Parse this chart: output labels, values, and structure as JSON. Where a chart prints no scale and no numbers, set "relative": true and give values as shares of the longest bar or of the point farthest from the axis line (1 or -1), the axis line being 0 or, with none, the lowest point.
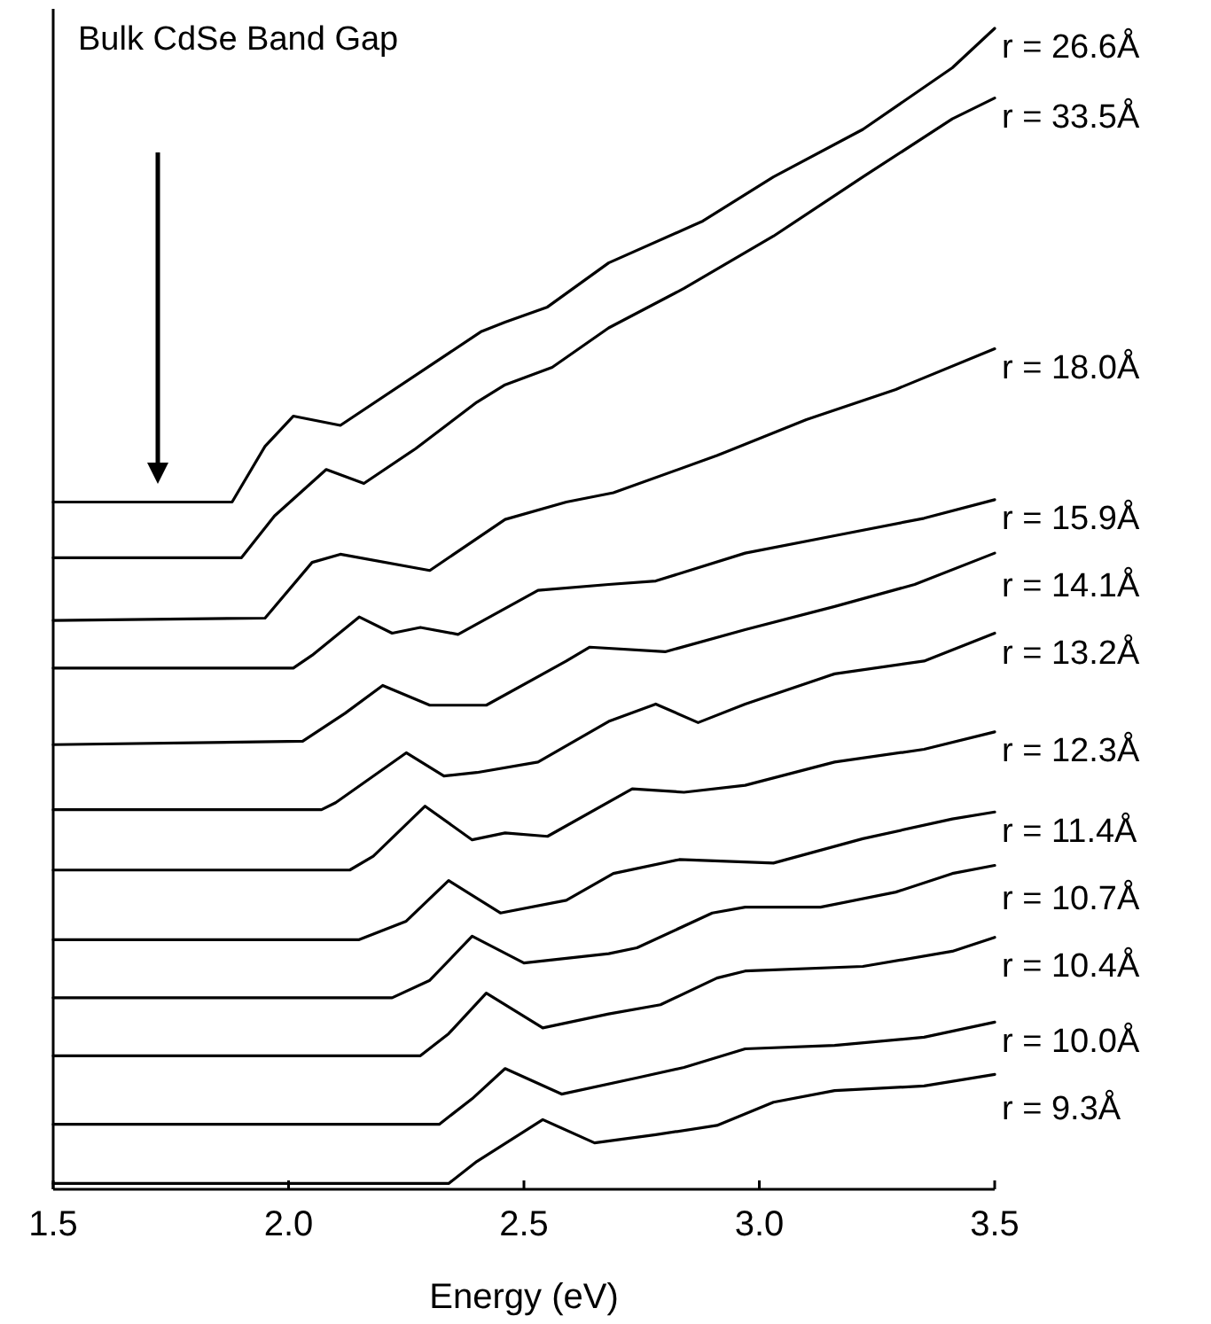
{
  "chart_data": {
    "type": "line",
    "xlabel": "Energy (eV)",
    "relative": true,
    "marker": "none",
    "line_style": "solid",
    "grid": false,
    "xlim": [
      1.5,
      3.5
    ],
    "xticks": [
      1.5,
      {
        "value": 2,
        "label": "2.0"
      },
      2.5,
      {
        "value": 3,
        "label": "3.0"
      },
      3.5
    ],
    "annotations": [
      "Bulk CdSe Band Gap"
    ],
    "series": [
      {
        "name": "r = 26.6Å",
        "color": "#000000",
        "x": [
          1.5,
          1.88,
          1.95,
          2.01,
          2.11,
          2.41,
          2.46,
          2.55,
          2.68,
          2.88,
          3.03,
          3.22,
          3.41,
          3.5
        ],
        "values": [
          0.592,
          0.592,
          0.64,
          0.666,
          0.658,
          0.739,
          0.747,
          0.76,
          0.798,
          0.834,
          0.872,
          0.913,
          0.966,
          1.0
        ]
      },
      {
        "name": "r = 33.5Å",
        "color": "#000000",
        "x": [
          1.5,
          1.9,
          1.97,
          2.08,
          2.16,
          2.27,
          2.4,
          2.46,
          2.56,
          2.68,
          2.84,
          3.03,
          3.22,
          3.41,
          3.5
        ],
        "values": [
          0.544,
          0.544,
          0.58,
          0.62,
          0.608,
          0.638,
          0.678,
          0.693,
          0.708,
          0.742,
          0.776,
          0.821,
          0.872,
          0.922,
          0.94
        ]
      },
      {
        "name": "r = 18.0Å",
        "color": "#000000",
        "x": [
          1.5,
          1.95,
          2.05,
          2.11,
          2.3,
          2.46,
          2.59,
          2.69,
          2.91,
          3.1,
          3.29,
          3.5
        ],
        "values": [
          0.49,
          0.492,
          0.54,
          0.547,
          0.533,
          0.577,
          0.592,
          0.6,
          0.632,
          0.663,
          0.689,
          0.724
        ]
      },
      {
        "name": "r = 15.9Å",
        "color": "#000000",
        "x": [
          1.5,
          2.01,
          2.05,
          2.15,
          2.22,
          2.28,
          2.36,
          2.53,
          2.68,
          2.78,
          2.97,
          3.16,
          3.35,
          3.5
        ],
        "values": [
          0.449,
          0.449,
          0.46,
          0.493,
          0.479,
          0.484,
          0.478,
          0.516,
          0.521,
          0.524,
          0.548,
          0.563,
          0.578,
          0.594
        ]
      },
      {
        "name": "r = 14.1Å",
        "color": "#000000",
        "x": [
          1.5,
          2.03,
          2.12,
          2.2,
          2.3,
          2.42,
          2.59,
          2.64,
          2.8,
          2.97,
          3.16,
          3.33,
          3.5
        ],
        "values": [
          0.383,
          0.386,
          0.41,
          0.434,
          0.417,
          0.417,
          0.455,
          0.467,
          0.463,
          0.482,
          0.502,
          0.521,
          0.548
        ]
      },
      {
        "name": "r = 13.2Å",
        "color": "#000000",
        "x": [
          1.5,
          2.07,
          2.1,
          2.25,
          2.33,
          2.4,
          2.53,
          2.68,
          2.78,
          2.87,
          2.97,
          3.16,
          3.35,
          3.5
        ],
        "values": [
          0.327,
          0.327,
          0.333,
          0.376,
          0.356,
          0.359,
          0.368,
          0.403,
          0.418,
          0.402,
          0.418,
          0.444,
          0.455,
          0.479
        ]
      },
      {
        "name": "r = 12.3Å",
        "color": "#000000",
        "x": [
          1.5,
          2.13,
          2.18,
          2.29,
          2.39,
          2.46,
          2.55,
          2.73,
          2.84,
          2.97,
          3.16,
          3.35,
          3.5
        ],
        "values": [
          0.275,
          0.275,
          0.287,
          0.33,
          0.301,
          0.307,
          0.304,
          0.345,
          0.342,
          0.348,
          0.368,
          0.379,
          0.394
        ]
      },
      {
        "name": "r = 11.4Å",
        "color": "#000000",
        "x": [
          1.5,
          2.15,
          2.25,
          2.34,
          2.45,
          2.59,
          2.69,
          2.83,
          3.03,
          3.22,
          3.41,
          3.5
        ],
        "values": [
          0.215,
          0.215,
          0.231,
          0.266,
          0.238,
          0.249,
          0.272,
          0.284,
          0.281,
          0.302,
          0.319,
          0.325
        ]
      },
      {
        "name": "r = 10.7Å",
        "color": "#000000",
        "x": [
          1.5,
          2.22,
          2.3,
          2.39,
          2.5,
          2.68,
          2.74,
          2.9,
          2.97,
          3.13,
          3.29,
          3.41,
          3.5
        ],
        "values": [
          0.165,
          0.165,
          0.18,
          0.218,
          0.195,
          0.203,
          0.208,
          0.238,
          0.243,
          0.243,
          0.256,
          0.272,
          0.279
        ]
      },
      {
        "name": "r = 10.4Å",
        "color": "#000000",
        "x": [
          1.5,
          2.28,
          2.34,
          2.42,
          2.54,
          2.68,
          2.79,
          2.91,
          2.97,
          3.22,
          3.41,
          3.5
        ],
        "values": [
          0.115,
          0.115,
          0.134,
          0.169,
          0.139,
          0.151,
          0.159,
          0.182,
          0.188,
          0.192,
          0.205,
          0.217
        ]
      },
      {
        "name": "r = 10.0Å",
        "color": "#000000",
        "x": [
          1.5,
          2.32,
          2.39,
          2.46,
          2.58,
          2.74,
          2.84,
          2.97,
          3.16,
          3.35,
          3.5
        ],
        "values": [
          0.056,
          0.056,
          0.078,
          0.104,
          0.082,
          0.096,
          0.105,
          0.121,
          0.124,
          0.131,
          0.144
        ]
      },
      {
        "name": "r = 9.3Å",
        "color": "#000000",
        "x": [
          1.5,
          2.34,
          2.4,
          2.54,
          2.65,
          2.78,
          2.91,
          3.03,
          3.16,
          3.35,
          3.5
        ],
        "values": [
          0.005,
          0.005,
          0.024,
          0.06,
          0.04,
          0.047,
          0.055,
          0.075,
          0.085,
          0.089,
          0.099
        ]
      }
    ]
  }
}
